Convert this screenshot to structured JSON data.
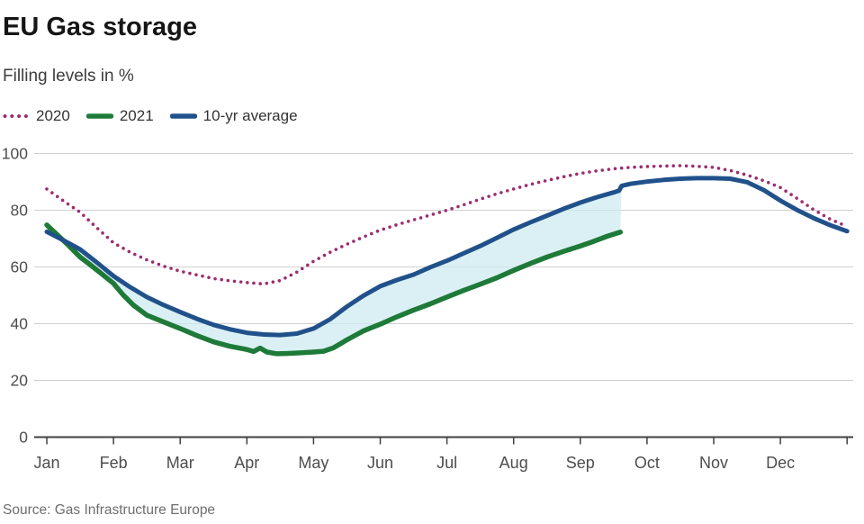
{
  "header": {
    "title": "EU Gas storage",
    "subtitle": "Filling levels in %"
  },
  "source": "Source: Gas Infrastructure Europe",
  "colors": {
    "series_2020": "#9c2d6f",
    "series_2021": "#1e7a38",
    "series_10yr": "#20518a",
    "fill_between": "#cdeaf0",
    "gridline": "#d0d0d0",
    "axis": "#404040",
    "axis_text": "#4d4d4d"
  },
  "chart_data": {
    "type": "line",
    "title": "EU Gas storage",
    "subtitle": "Filling levels in %",
    "xlabel": "",
    "ylabel": "Filling levels in %",
    "x_unit": "months, 0 = Jan 1",
    "xlim": [
      0,
      12
    ],
    "ylim": [
      0,
      100
    ],
    "yticks": [
      0,
      20,
      40,
      60,
      80,
      100
    ],
    "xtick_labels": [
      "Jan",
      "Feb",
      "Mar",
      "Apr",
      "May",
      "Jun",
      "Jul",
      "Aug",
      "Sep",
      "Oct",
      "Nov",
      "Dec"
    ],
    "grid": "horizontal",
    "legend_position": "top-left",
    "fill_between": {
      "upper": "10-yr average",
      "lower": "2021",
      "x_range": [
        0.4,
        8.62
      ],
      "note": "light cyan band between 2021 line and 10-yr average line, ends where 2021 data ends (~mid-September)"
    },
    "series": [
      {
        "name": "2020",
        "style": "dotted",
        "width": 3.6,
        "points": [
          [
            0,
            87.5
          ],
          [
            0.25,
            83.3
          ],
          [
            0.5,
            79.3
          ],
          [
            0.75,
            73.8
          ],
          [
            1,
            68.5
          ],
          [
            1.25,
            65.2
          ],
          [
            1.5,
            62.5
          ],
          [
            1.75,
            60.3
          ],
          [
            2,
            58.5
          ],
          [
            2.25,
            57.2
          ],
          [
            2.5,
            55.9
          ],
          [
            2.75,
            55.1
          ],
          [
            3,
            54.5
          ],
          [
            3.25,
            54.0
          ],
          [
            3.5,
            55.2
          ],
          [
            3.75,
            58.2
          ],
          [
            4,
            62.0
          ],
          [
            4.25,
            65.2
          ],
          [
            4.5,
            68.0
          ],
          [
            4.75,
            70.6
          ],
          [
            5,
            73.0
          ],
          [
            5.25,
            74.9
          ],
          [
            5.5,
            76.6
          ],
          [
            5.75,
            78.3
          ],
          [
            6,
            80.0
          ],
          [
            6.25,
            81.9
          ],
          [
            6.5,
            83.9
          ],
          [
            6.75,
            85.8
          ],
          [
            7,
            87.5
          ],
          [
            7.25,
            89.1
          ],
          [
            7.5,
            90.5
          ],
          [
            7.75,
            91.8
          ],
          [
            8,
            93.0
          ],
          [
            8.25,
            93.9
          ],
          [
            8.5,
            94.6
          ],
          [
            8.75,
            95.1
          ],
          [
            9,
            95.4
          ],
          [
            9.25,
            95.6
          ],
          [
            9.5,
            95.7
          ],
          [
            9.75,
            95.5
          ],
          [
            10,
            95.1
          ],
          [
            10.25,
            94.0
          ],
          [
            10.5,
            92.4
          ],
          [
            10.75,
            90.4
          ],
          [
            11,
            88.0
          ],
          [
            11.25,
            84.2
          ],
          [
            11.5,
            80.2
          ],
          [
            11.75,
            76.8
          ],
          [
            12,
            74.3
          ]
        ]
      },
      {
        "name": "2021",
        "style": "solid",
        "width": 5.5,
        "points": [
          [
            0,
            74.8
          ],
          [
            0.15,
            71.5
          ],
          [
            0.3,
            68.2
          ],
          [
            0.5,
            63.5
          ],
          [
            0.65,
            60.8
          ],
          [
            0.8,
            58.0
          ],
          [
            1,
            54.2
          ],
          [
            1.15,
            50.0
          ],
          [
            1.3,
            46.5
          ],
          [
            1.5,
            43.0
          ],
          [
            1.75,
            40.6
          ],
          [
            2,
            38.3
          ],
          [
            2.25,
            35.8
          ],
          [
            2.5,
            33.6
          ],
          [
            2.75,
            32.0
          ],
          [
            3,
            30.9
          ],
          [
            3.1,
            30.2
          ],
          [
            3.2,
            31.4
          ],
          [
            3.3,
            30.0
          ],
          [
            3.45,
            29.4
          ],
          [
            3.6,
            29.5
          ],
          [
            3.8,
            29.7
          ],
          [
            4,
            30.0
          ],
          [
            4.15,
            30.3
          ],
          [
            4.3,
            31.5
          ],
          [
            4.5,
            34.3
          ],
          [
            4.75,
            37.5
          ],
          [
            5,
            39.8
          ],
          [
            5.25,
            42.4
          ],
          [
            5.5,
            44.8
          ],
          [
            5.75,
            47.0
          ],
          [
            6,
            49.4
          ],
          [
            6.25,
            51.7
          ],
          [
            6.5,
            53.9
          ],
          [
            6.75,
            56.2
          ],
          [
            7,
            58.8
          ],
          [
            7.25,
            61.2
          ],
          [
            7.5,
            63.5
          ],
          [
            7.75,
            65.5
          ],
          [
            8,
            67.4
          ],
          [
            8.2,
            69.0
          ],
          [
            8.4,
            70.8
          ],
          [
            8.6,
            72.3
          ]
        ]
      },
      {
        "name": "10-yr average",
        "style": "solid",
        "width": 5,
        "points": [
          [
            0,
            72.4
          ],
          [
            0.25,
            69.4
          ],
          [
            0.5,
            66.2
          ],
          [
            0.75,
            61.6
          ],
          [
            1,
            56.8
          ],
          [
            1.25,
            52.9
          ],
          [
            1.5,
            49.4
          ],
          [
            1.75,
            46.6
          ],
          [
            2,
            44.1
          ],
          [
            2.25,
            41.7
          ],
          [
            2.5,
            39.6
          ],
          [
            2.75,
            38.0
          ],
          [
            3,
            36.8
          ],
          [
            3.25,
            36.2
          ],
          [
            3.5,
            36.0
          ],
          [
            3.75,
            36.5
          ],
          [
            4,
            38.3
          ],
          [
            4.25,
            41.6
          ],
          [
            4.5,
            46.0
          ],
          [
            4.75,
            49.9
          ],
          [
            5,
            53.2
          ],
          [
            5.25,
            55.4
          ],
          [
            5.5,
            57.3
          ],
          [
            5.75,
            59.9
          ],
          [
            6,
            62.2
          ],
          [
            6.25,
            64.8
          ],
          [
            6.5,
            67.4
          ],
          [
            6.75,
            70.3
          ],
          [
            7,
            73.2
          ],
          [
            7.25,
            75.7
          ],
          [
            7.5,
            78.1
          ],
          [
            7.75,
            80.5
          ],
          [
            8,
            82.7
          ],
          [
            8.25,
            84.6
          ],
          [
            8.5,
            86.3
          ],
          [
            8.58,
            86.9
          ],
          [
            8.62,
            88.6
          ],
          [
            8.75,
            89.3
          ],
          [
            9,
            90.1
          ],
          [
            9.25,
            90.7
          ],
          [
            9.5,
            91.1
          ],
          [
            9.75,
            91.3
          ],
          [
            10,
            91.3
          ],
          [
            10.25,
            91.1
          ],
          [
            10.5,
            89.9
          ],
          [
            10.75,
            87.1
          ],
          [
            11,
            83.4
          ],
          [
            11.25,
            80.1
          ],
          [
            11.5,
            77.2
          ],
          [
            11.75,
            74.7
          ],
          [
            12,
            72.6
          ]
        ]
      }
    ]
  }
}
